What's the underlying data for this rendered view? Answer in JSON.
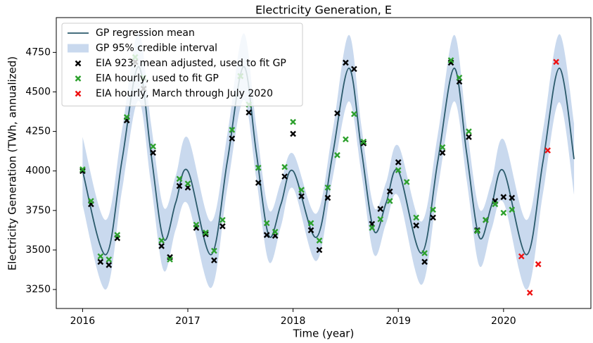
{
  "chart_data": {
    "type": "line",
    "title": "Electricity Generation, E",
    "x_label": "Time (year)",
    "y_label": "Electricity Generation (TWh, annualized)",
    "xlim": [
      2015.75,
      2020.83
    ],
    "ylim": [
      3130,
      4970
    ],
    "xticks": [
      2016,
      2017,
      2018,
      2019,
      2020
    ],
    "yticks": [
      3250,
      3500,
      3750,
      4000,
      4250,
      4500,
      4750
    ],
    "legend": "upper left",
    "series": [
      {
        "name": "GP regression mean",
        "type": "line",
        "color": "#2b5a6b",
        "x": [
          2016,
          2016.22,
          2016.375,
          2016.53,
          2016.65,
          2016.77,
          2016.885,
          2017,
          2017.22,
          2017.375,
          2017.53,
          2017.65,
          2017.77,
          2017.885,
          2018,
          2018.22,
          2018.375,
          2018.53,
          2018.65,
          2018.77,
          2018.885,
          2019,
          2019.22,
          2019.375,
          2019.53,
          2019.65,
          2019.77,
          2019.885,
          2020,
          2020.22,
          2020.375,
          2020.53,
          2020.67
        ],
        "values": [
          4000,
          3470,
          4070,
          4660,
          4110,
          3570,
          3800,
          4000,
          3470,
          4060,
          4660,
          4120,
          3590,
          3790,
          4000,
          3580,
          4100,
          4650,
          4130,
          3620,
          3800,
          4000,
          3480,
          4060,
          4650,
          4110,
          3580,
          3780,
          4000,
          3470,
          4060,
          4650,
          4075
        ]
      },
      {
        "name": "GP 95% credible interval",
        "type": "band",
        "color": "#c9d9ee",
        "x": [
          2016,
          2016.22,
          2016.375,
          2016.53,
          2016.65,
          2016.77,
          2016.885,
          2017,
          2017.22,
          2017.375,
          2017.53,
          2017.65,
          2017.77,
          2017.885,
          2018,
          2018.22,
          2018.375,
          2018.53,
          2018.65,
          2018.77,
          2018.885,
          2019,
          2019.22,
          2019.375,
          2019.53,
          2019.65,
          2019.77,
          2019.885,
          2020,
          2020.22,
          2020.375,
          2020.53,
          2020.67
        ],
        "lower": [
          3785,
          3250,
          3880,
          4445,
          3920,
          3370,
          3630,
          3790,
          3260,
          3890,
          4450,
          3955,
          3425,
          3650,
          3890,
          3430,
          3950,
          4440,
          3980,
          3470,
          3670,
          3840,
          3280,
          3890,
          4440,
          3940,
          3400,
          3630,
          3800,
          3250,
          3860,
          4435,
          3850
        ],
        "upper": [
          4215,
          3690,
          4260,
          4875,
          4300,
          3770,
          3970,
          4210,
          3680,
          4230,
          4870,
          4285,
          3755,
          3930,
          4110,
          3730,
          4250,
          4860,
          4280,
          3770,
          3930,
          4160,
          3680,
          4230,
          4860,
          4280,
          3760,
          3930,
          4200,
          3690,
          4260,
          4865,
          4300
        ]
      },
      {
        "name": "EIA 923, mean adjusted, used to fit GP",
        "type": "scatter",
        "color": "#000000",
        "x": [
          2016,
          2016.08,
          2016.17,
          2016.25,
          2016.33,
          2016.42,
          2016.5,
          2016.58,
          2016.67,
          2016.75,
          2016.83,
          2016.92,
          2017,
          2017.08,
          2017.17,
          2017.25,
          2017.33,
          2017.42,
          2017.5,
          2017.58,
          2017.67,
          2017.75,
          2017.83,
          2017.92,
          2018,
          2018.08,
          2018.17,
          2018.25,
          2018.33,
          2018.42,
          2018.5,
          2018.58,
          2018.67,
          2018.75,
          2018.83,
          2018.92,
          2019,
          2019.17,
          2019.25,
          2019.33,
          2019.42,
          2019.5,
          2019.58,
          2019.67,
          2019.75,
          2019.83,
          2019.92,
          2020,
          2020.08
        ],
        "values": [
          4000,
          3790,
          3425,
          3405,
          3575,
          4320,
          4690,
          4520,
          4115,
          3525,
          3455,
          3905,
          3895,
          3640,
          3600,
          3435,
          3650,
          4205,
          4600,
          4370,
          3925,
          3595,
          3590,
          3965,
          4235,
          3840,
          3625,
          3500,
          3830,
          4365,
          4685,
          4645,
          4175,
          3665,
          3760,
          3870,
          4055,
          3655,
          3425,
          3705,
          4115,
          4685,
          4565,
          4215,
          3625,
          3690,
          3810,
          3835,
          3830
        ]
      },
      {
        "name": "EIA hourly, used to fit GP",
        "type": "scatter",
        "color": "#2ca02c",
        "x": [
          2016,
          2016.08,
          2016.17,
          2016.25,
          2016.33,
          2016.42,
          2016.5,
          2016.58,
          2016.67,
          2016.75,
          2016.83,
          2016.92,
          2017,
          2017.08,
          2017.17,
          2017.25,
          2017.33,
          2017.42,
          2017.5,
          2017.58,
          2017.67,
          2017.75,
          2017.83,
          2017.92,
          2018,
          2018.08,
          2018.17,
          2018.25,
          2018.33,
          2018.42,
          2018.5,
          2018.58,
          2018.67,
          2018.75,
          2018.83,
          2018.92,
          2019,
          2019.08,
          2019.17,
          2019.25,
          2019.33,
          2019.42,
          2019.5,
          2019.58,
          2019.67,
          2019.75,
          2019.83,
          2019.92,
          2020,
          2020.08
        ],
        "values": [
          4010,
          3810,
          3460,
          3440,
          3595,
          4340,
          4720,
          4590,
          4155,
          3560,
          3440,
          3950,
          3920,
          3660,
          3610,
          3495,
          3690,
          4260,
          4600,
          4420,
          4020,
          3670,
          3615,
          4025,
          4310,
          3880,
          3670,
          3560,
          3895,
          4100,
          4200,
          4360,
          4185,
          3640,
          3695,
          3810,
          4005,
          3930,
          3705,
          3480,
          3755,
          4150,
          4700,
          4590,
          4250,
          3620,
          3690,
          3790,
          3735,
          3755
        ]
      },
      {
        "name": "EIA hourly, March through July 2020",
        "type": "scatter",
        "color": "#ee1111",
        "x": [
          2020.17,
          2020.25,
          2020.33,
          2020.42,
          2020.5
        ],
        "values": [
          3460,
          3230,
          3410,
          4130,
          4690
        ]
      }
    ]
  }
}
